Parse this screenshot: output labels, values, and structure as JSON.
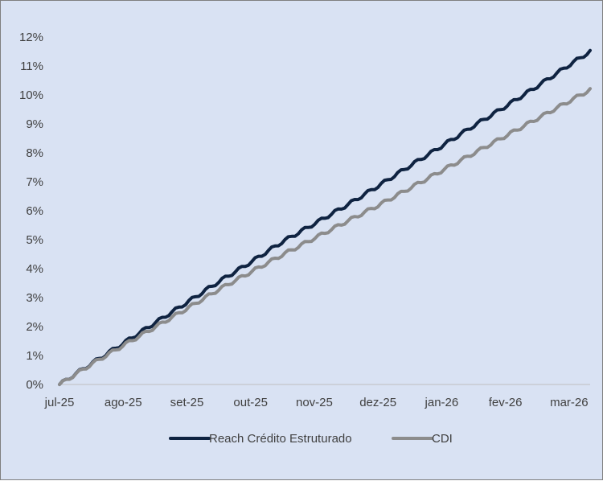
{
  "chart_data": {
    "type": "line",
    "title": "",
    "xlabel": "",
    "ylabel": "",
    "ylim": [
      0,
      12
    ],
    "y_unit": "%",
    "y_ticks": [
      0,
      1,
      2,
      3,
      4,
      5,
      6,
      7,
      8,
      9,
      10,
      11,
      12
    ],
    "y_tick_labels": [
      "0%",
      "1%",
      "2%",
      "3%",
      "4%",
      "5%",
      "6%",
      "7%",
      "8%",
      "9%",
      "10%",
      "11%",
      "12%"
    ],
    "x_tick_labels": [
      "jul-25",
      "ago-25",
      "set-25",
      "out-25",
      "nov-25",
      "dez-25",
      "jan-26",
      "fev-26",
      "mar-26"
    ],
    "x_tick_positions": [
      0,
      1,
      2,
      3,
      4,
      5,
      6,
      7,
      8
    ],
    "x_range": [
      0,
      8.33
    ],
    "grid": false,
    "legend_position": "bottom",
    "series": [
      {
        "name": "Reach Crédito Estruturado",
        "color": "#0f2341",
        "x": [
          0,
          0.5,
          1,
          1.5,
          2,
          2.5,
          3,
          3.5,
          4,
          4.5,
          5,
          5.5,
          6,
          6.5,
          7,
          7.5,
          8,
          8.33
        ],
        "values": [
          0.0,
          0.72,
          1.42,
          2.13,
          2.83,
          3.55,
          4.22,
          4.93,
          5.55,
          6.18,
          6.85,
          7.55,
          8.23,
          8.93,
          9.6,
          10.3,
          11.03,
          11.5
        ]
      },
      {
        "name": "CDI",
        "color": "#8c8c8c",
        "x": [
          0,
          0.5,
          1,
          1.5,
          2,
          2.5,
          3,
          3.5,
          4,
          4.5,
          5,
          5.5,
          6,
          6.5,
          7,
          7.5,
          8,
          8.33
        ],
        "values": [
          0.0,
          0.7,
          1.35,
          1.98,
          2.62,
          3.28,
          3.88,
          4.48,
          5.05,
          5.62,
          6.18,
          6.78,
          7.38,
          7.98,
          8.58,
          9.18,
          9.78,
          10.18
        ]
      }
    ]
  }
}
